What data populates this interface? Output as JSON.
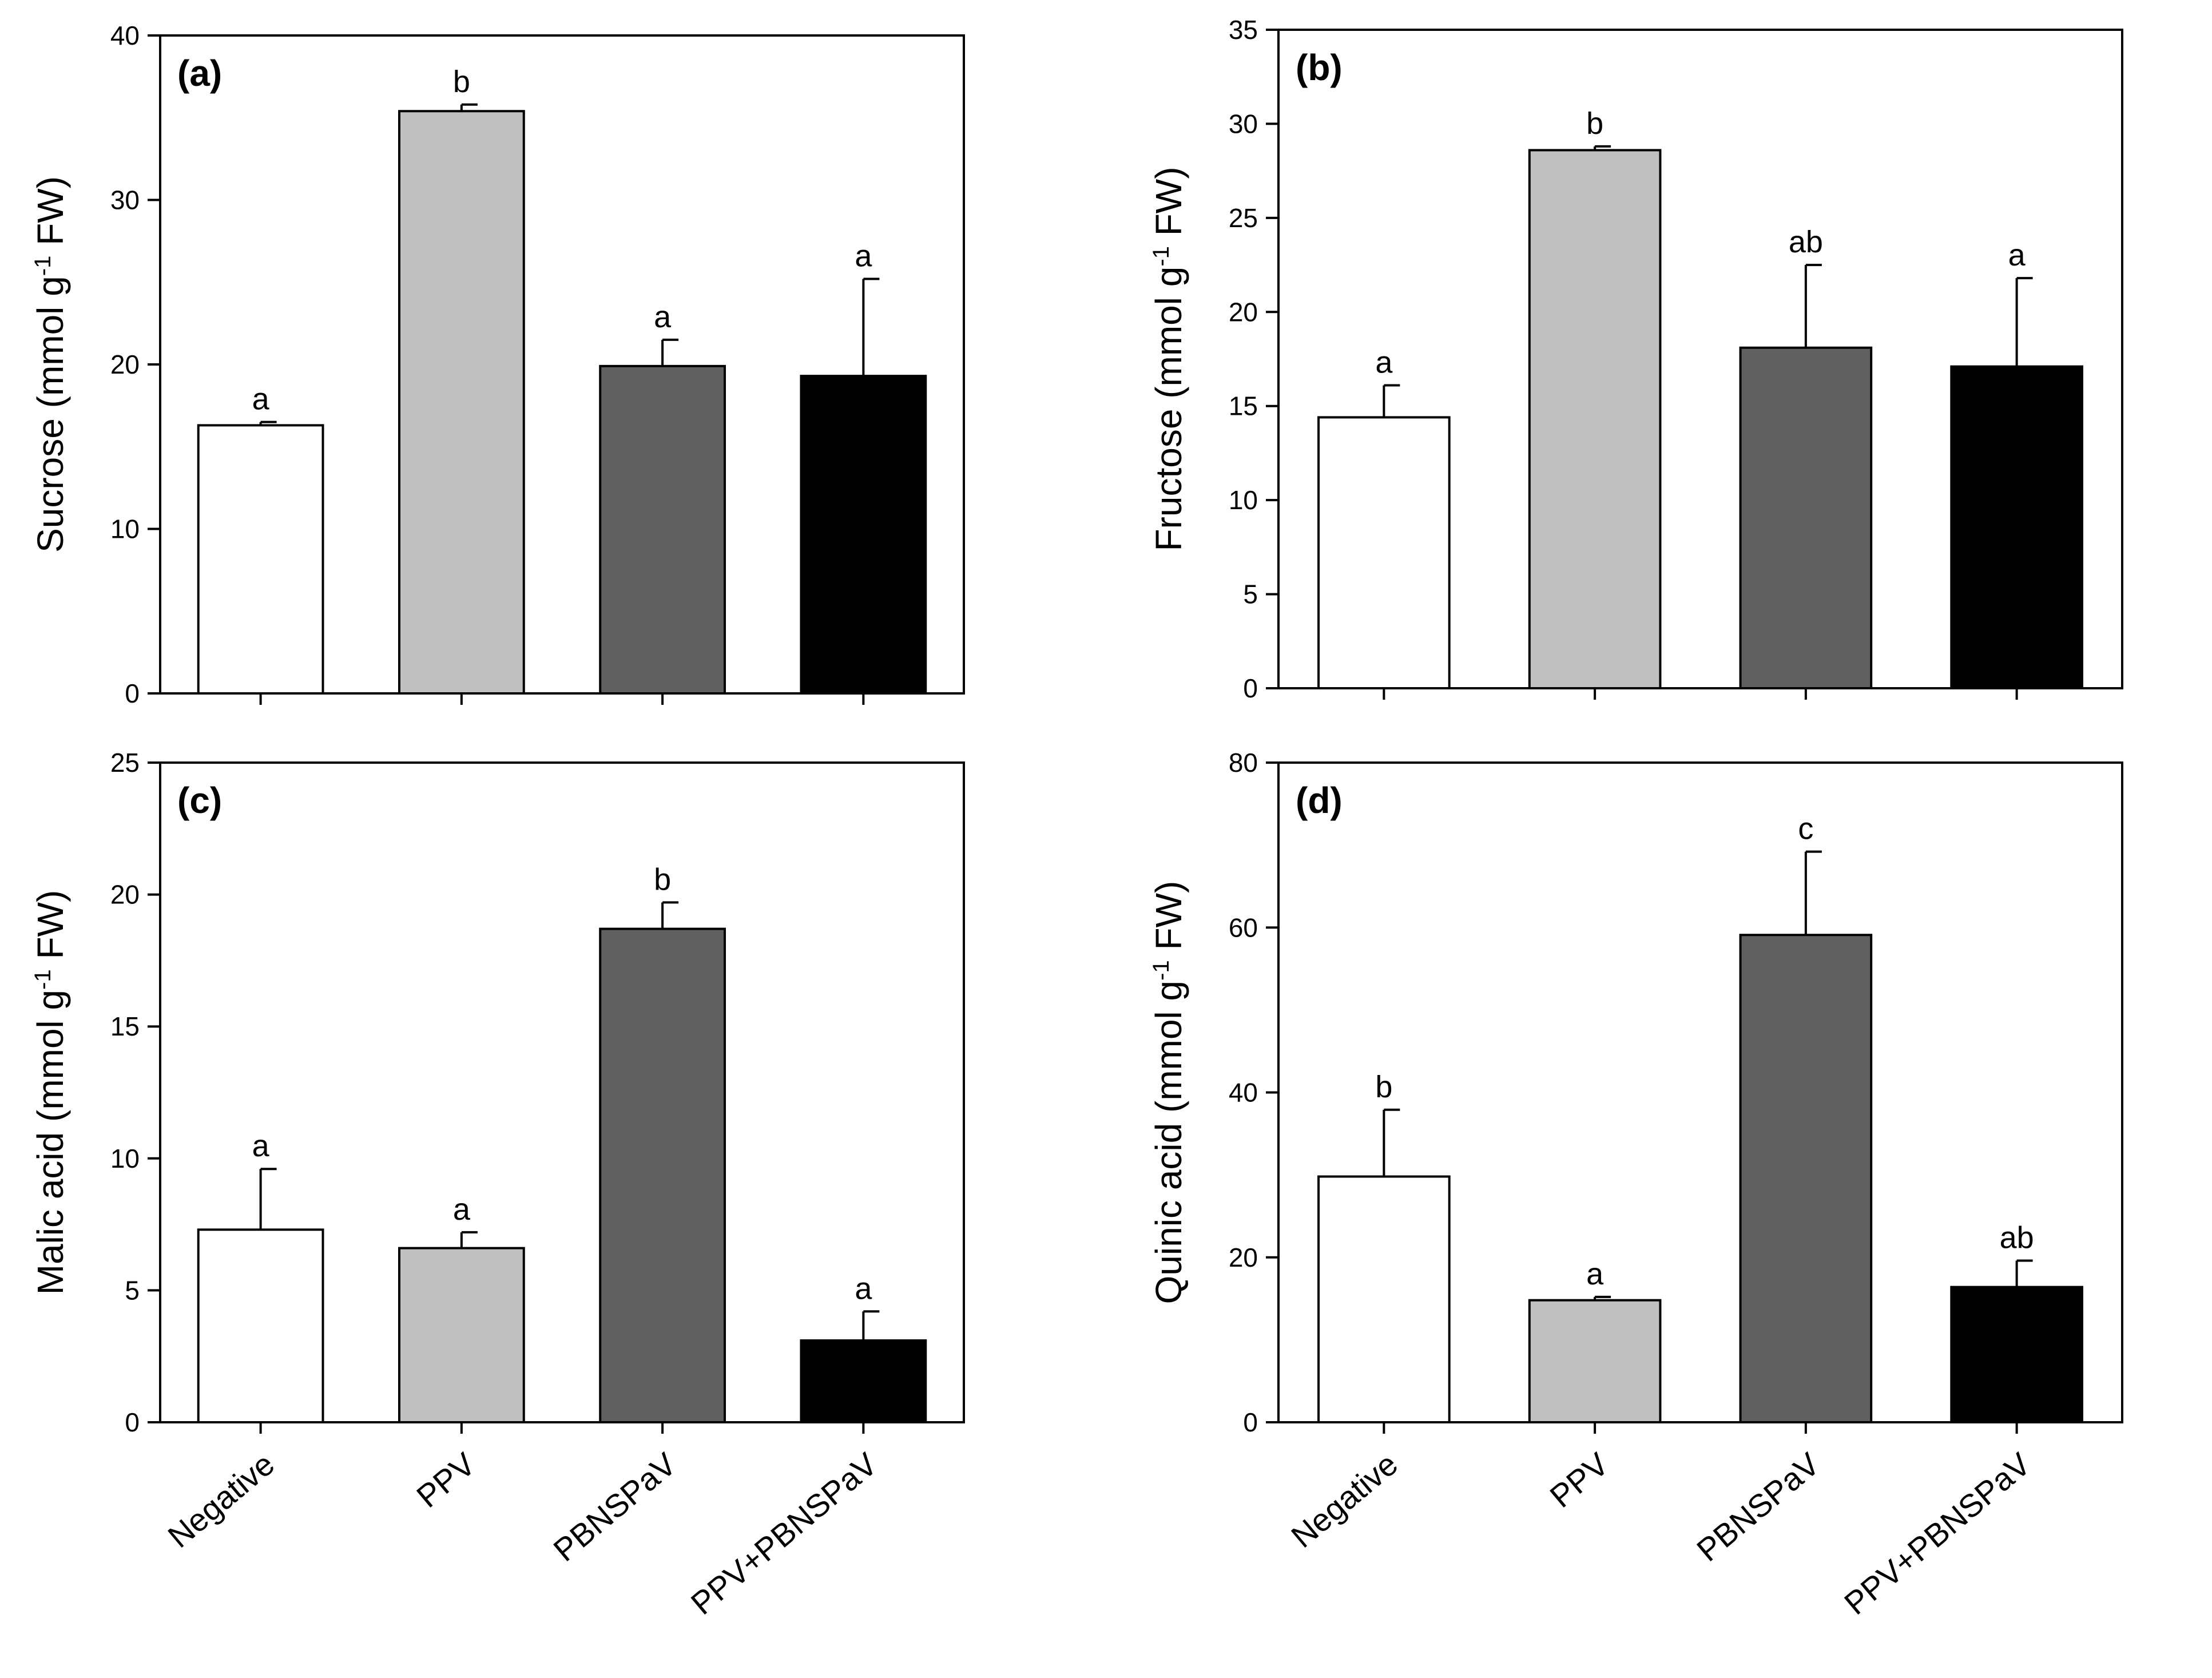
{
  "chart_data": [
    {
      "type": "bar",
      "panel_label": "(a)",
      "categories": [
        "Negative",
        "PPV",
        "PBNSPaV",
        "PPV+PBNSPaV"
      ],
      "values": [
        16.3,
        35.4,
        19.9,
        19.3
      ],
      "errors": [
        0.2,
        0.4,
        1.6,
        5.9
      ],
      "sig_letters": [
        "a",
        "b",
        "a",
        "a"
      ],
      "ylabel": {
        "text": "Sucrose (mmol g",
        "sup": "-1",
        "after": " FW)"
      },
      "ylim": [
        0,
        40
      ],
      "yticks": [
        0,
        10,
        20,
        30,
        40
      ],
      "show_category_labels": false
    },
    {
      "type": "bar",
      "panel_label": "(b)",
      "categories": [
        "Negative",
        "PPV",
        "PBNSPaV",
        "PPV+PBNSPaV"
      ],
      "values": [
        14.4,
        28.6,
        18.1,
        17.1
      ],
      "errors": [
        1.7,
        0.2,
        4.4,
        4.7
      ],
      "sig_letters": [
        "a",
        "b",
        "ab",
        "a"
      ],
      "ylabel": {
        "text": "Fructose (mmol g",
        "sup": "-1",
        "after": " FW)"
      },
      "ylim": [
        0,
        35
      ],
      "yticks": [
        0,
        5,
        10,
        15,
        20,
        25,
        30,
        35
      ],
      "show_category_labels": false
    },
    {
      "type": "bar",
      "panel_label": "(c)",
      "categories": [
        "Negative",
        "PPV",
        "PBNSPaV",
        "PPV+PBNSPaV"
      ],
      "values": [
        7.3,
        6.6,
        18.7,
        3.1
      ],
      "errors": [
        2.3,
        0.6,
        1.0,
        1.1
      ],
      "sig_letters": [
        "a",
        "a",
        "b",
        "a"
      ],
      "ylabel": {
        "text": "Malic acid (mmol g",
        "sup": "-1",
        "after": " FW)"
      },
      "ylim": [
        0,
        25
      ],
      "yticks": [
        0,
        5,
        10,
        15,
        20,
        25
      ],
      "show_category_labels": true
    },
    {
      "type": "bar",
      "panel_label": "(d)",
      "categories": [
        "Negative",
        "PPV",
        "PBNSPaV",
        "PPV+PBNSPaV"
      ],
      "values": [
        29.8,
        14.8,
        59.1,
        16.4
      ],
      "errors": [
        8.1,
        0.4,
        10.1,
        3.2
      ],
      "sig_letters": [
        "b",
        "a",
        "c",
        "ab"
      ],
      "ylabel": {
        "text": "Quinic acid (mmol g",
        "sup": "-1",
        "after": " FW)"
      },
      "ylim": [
        0,
        80
      ],
      "yticks": [
        0,
        20,
        40,
        60,
        80
      ],
      "show_category_labels": true
    }
  ],
  "colors": {
    "bars": [
      "#ffffff",
      "#c0c0c0",
      "#606060",
      "#000000"
    ],
    "outline": "#000000"
  }
}
